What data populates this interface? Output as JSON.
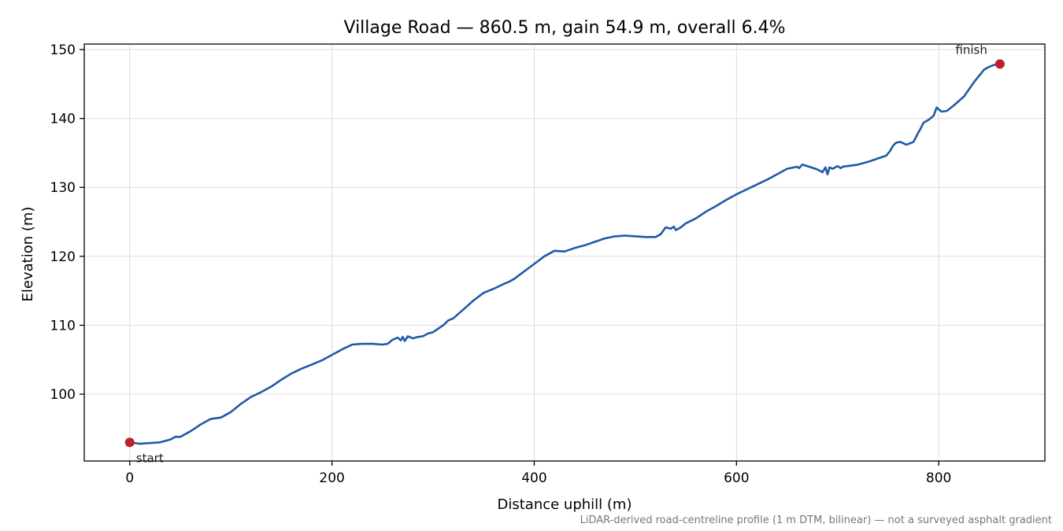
{
  "chart_data": {
    "type": "line",
    "title": "Village Road — 860.5 m, gain 54.9 m, overall 6.4%",
    "xlabel": "Distance uphill (m)",
    "ylabel": "Elevation (m)",
    "xlim": [
      -45,
      905
    ],
    "ylim": [
      90.3,
      150.8
    ],
    "xticks": [
      0,
      200,
      400,
      600,
      800
    ],
    "yticks": [
      100,
      110,
      120,
      130,
      140,
      150
    ],
    "grid": true,
    "footnote": "LiDAR-derived road-centreline profile (1 m DTM, bilinear) — not a surveyed asphalt gradient",
    "series": [
      {
        "x": [
          0,
          10,
          20,
          30,
          40,
          45,
          50,
          60,
          70,
          80,
          90,
          100,
          110,
          120,
          130,
          140,
          150,
          160,
          170,
          180,
          190,
          200,
          210,
          220,
          230,
          240,
          250,
          255,
          260,
          265,
          268,
          270,
          272,
          275,
          280,
          285,
          290,
          295,
          300,
          305,
          310,
          315,
          320,
          330,
          340,
          350,
          360,
          370,
          375,
          380,
          390,
          400,
          410,
          420,
          430,
          440,
          450,
          460,
          470,
          480,
          490,
          500,
          510,
          520,
          525,
          530,
          535,
          538,
          540,
          545,
          550,
          560,
          570,
          580,
          590,
          600,
          610,
          620,
          630,
          640,
          650,
          660,
          662,
          665,
          670,
          680,
          685,
          688,
          690,
          692,
          695,
          700,
          703,
          705,
          710,
          720,
          730,
          740,
          748,
          752,
          755,
          758,
          762,
          768,
          775,
          780,
          782,
          785,
          790,
          795,
          798,
          800,
          803,
          808,
          815,
          825,
          835,
          845,
          850,
          855,
          860.5
        ],
        "values": [
          93.0,
          92.8,
          92.9,
          93.0,
          93.4,
          93.8,
          93.8,
          94.6,
          95.6,
          96.4,
          96.6,
          97.4,
          98.6,
          99.6,
          100.3,
          101.1,
          102.1,
          103.0,
          103.7,
          104.3,
          104.9,
          105.7,
          106.5,
          107.2,
          107.3,
          107.3,
          107.2,
          107.3,
          107.9,
          108.2,
          107.8,
          108.3,
          107.7,
          108.4,
          108.1,
          108.3,
          108.4,
          108.8,
          109.0,
          109.5,
          110.0,
          110.7,
          111.0,
          112.3,
          113.6,
          114.7,
          115.3,
          116.0,
          116.3,
          116.7,
          117.8,
          118.9,
          120.0,
          120.8,
          120.7,
          121.2,
          121.6,
          122.1,
          122.6,
          122.9,
          123.0,
          122.9,
          122.8,
          122.8,
          123.2,
          124.2,
          124.0,
          124.3,
          123.8,
          124.2,
          124.8,
          125.5,
          126.5,
          127.3,
          128.2,
          129.0,
          129.7,
          130.4,
          131.1,
          131.9,
          132.7,
          133.0,
          132.8,
          133.3,
          133.1,
          132.6,
          132.2,
          132.9,
          131.9,
          132.9,
          132.7,
          133.1,
          132.8,
          133.0,
          133.1,
          133.3,
          133.7,
          134.2,
          134.6,
          135.3,
          136.1,
          136.5,
          136.6,
          136.2,
          136.6,
          138.0,
          138.5,
          139.4,
          139.8,
          140.4,
          141.6,
          141.3,
          141.0,
          141.1,
          141.9,
          143.2,
          145.3,
          147.1,
          147.5,
          147.8,
          147.9
        ]
      }
    ],
    "annotations": [
      {
        "label": "start",
        "x": 0,
        "y": 93.0
      },
      {
        "label": "finish",
        "x": 860.5,
        "y": 147.9
      }
    ]
  }
}
